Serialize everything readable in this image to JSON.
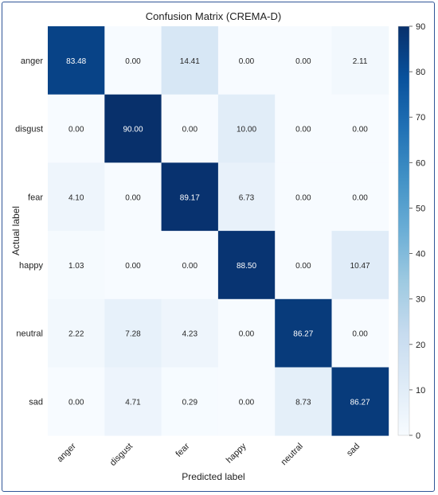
{
  "chart_data": {
    "type": "heatmap",
    "title": "Confusion Matrix (CREMA-D)",
    "xlabel": "Predicted label",
    "ylabel": "Actual label",
    "x_categories": [
      "anger",
      "disgust",
      "fear",
      "happy",
      "neutral",
      "sad"
    ],
    "y_categories": [
      "anger",
      "disgust",
      "fear",
      "happy",
      "neutral",
      "sad"
    ],
    "values": [
      [
        83.48,
        0.0,
        14.41,
        0.0,
        0.0,
        2.11
      ],
      [
        0.0,
        90.0,
        0.0,
        10.0,
        0.0,
        0.0
      ],
      [
        4.1,
        0.0,
        89.17,
        6.73,
        0.0,
        0.0
      ],
      [
        1.03,
        0.0,
        0.0,
        88.5,
        0.0,
        10.47
      ],
      [
        2.22,
        7.28,
        4.23,
        0.0,
        86.27,
        0.0
      ],
      [
        0.0,
        4.71,
        0.29,
        0.0,
        8.73,
        86.27
      ]
    ],
    "value_format": "2 decimals",
    "colormap": "Blues",
    "colorbar": {
      "range": [
        0,
        90
      ],
      "ticks": [
        0,
        10,
        20,
        30,
        40,
        50,
        60,
        70,
        80,
        90
      ]
    },
    "grid": false
  }
}
